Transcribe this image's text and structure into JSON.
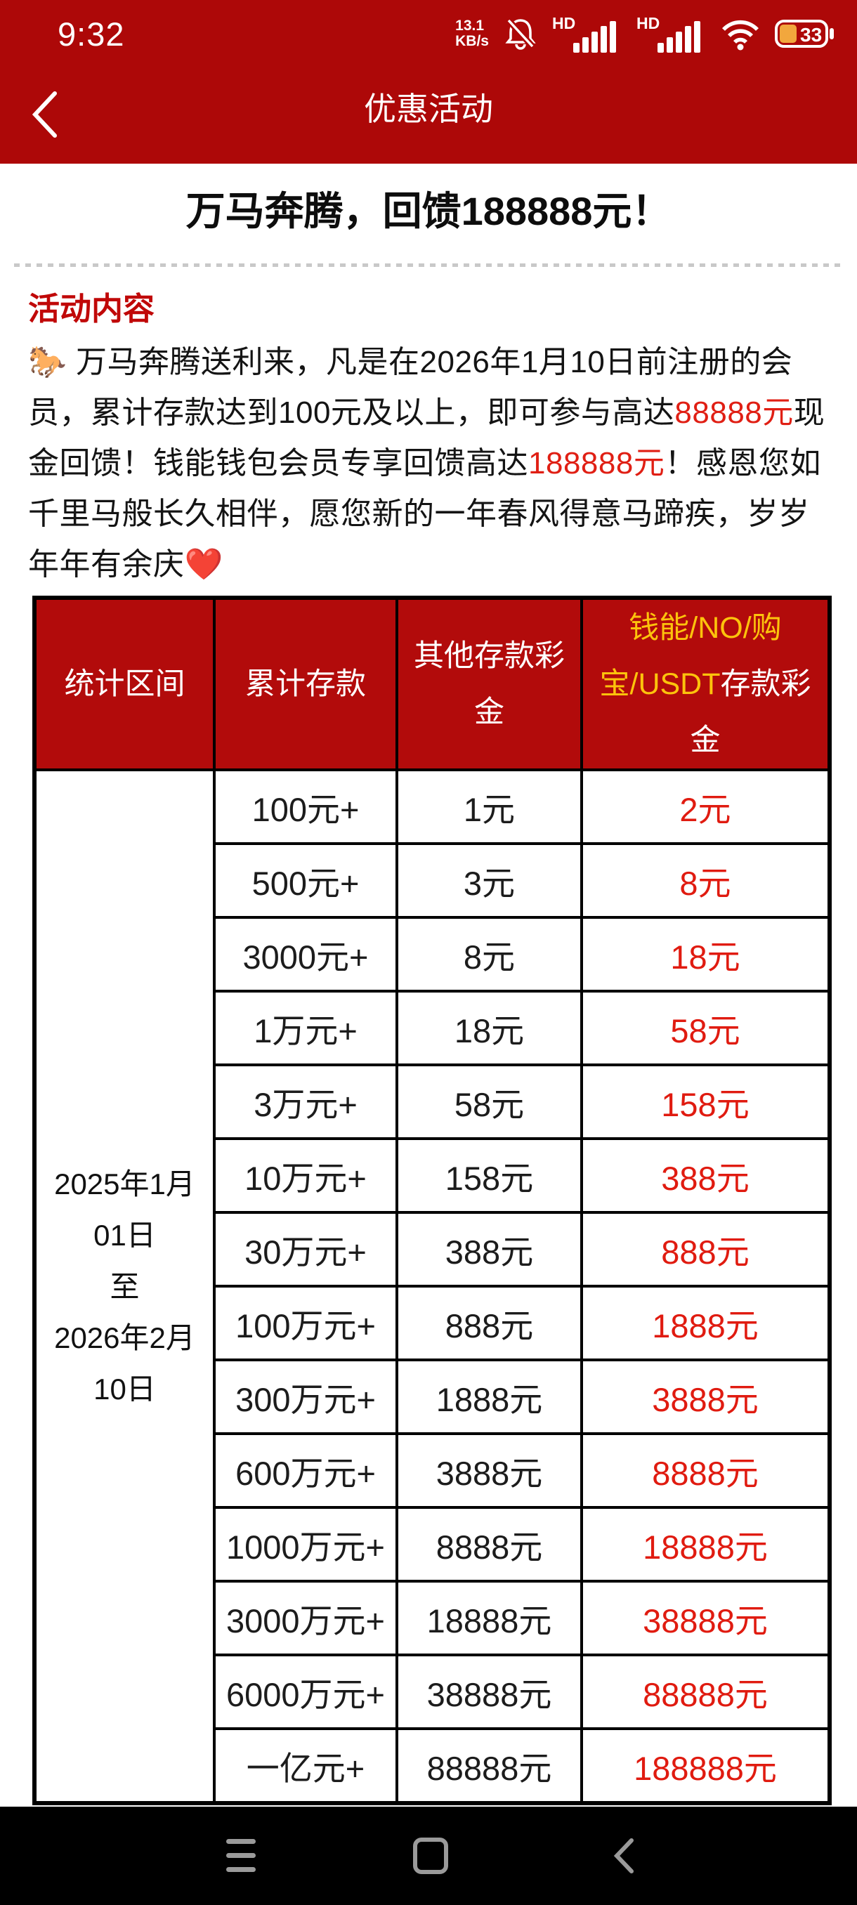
{
  "status_bar": {
    "time": "9:32",
    "net_speed_value": "13.1",
    "net_speed_unit": "KB/s",
    "sim1_label": "HD",
    "sim2_label": "HD",
    "battery_percent": "33"
  },
  "nav_bar": {
    "title": "优惠活动"
  },
  "page": {
    "title": "万马奔腾，回馈188888元！",
    "section_heading": "活动内容",
    "paragraph_segments": [
      {
        "text": "🐎 万马奔腾送利来，凡是在2026年1月10日前注册的会员，累计存款达到100元及以上，即可参与高达",
        "style": "black"
      },
      {
        "text": "88888元",
        "style": "red"
      },
      {
        "text": "现金回馈！钱能钱包会员专享回馈高达",
        "style": "black"
      },
      {
        "text": "188888元",
        "style": "red"
      },
      {
        "text": "！感恩您如千里马般长久相伴，愿您新的一年春风得意马蹄疾，岁岁年年有余庆",
        "style": "black"
      },
      {
        "text": "❤️",
        "style": "heart"
      }
    ]
  },
  "table": {
    "headers": {
      "period": "统计区间",
      "deposit": "累计存款",
      "other_bonus_lines": [
        "其他存款彩",
        "金"
      ],
      "wallet_bonus_lines": [
        {
          "gold": "钱能/NO/购",
          "white": ""
        },
        {
          "gold": "宝/USDT",
          "white": "存款彩"
        },
        {
          "gold": "",
          "white": "金"
        }
      ]
    },
    "period_lines": [
      "2025年1月",
      "01日",
      "至",
      "2026年2月",
      "10日"
    ],
    "rows": [
      {
        "deposit": "100元+",
        "other_bonus": "1元",
        "wallet_bonus": "2元"
      },
      {
        "deposit": "500元+",
        "other_bonus": "3元",
        "wallet_bonus": "8元"
      },
      {
        "deposit": "3000元+",
        "other_bonus": "8元",
        "wallet_bonus": "18元"
      },
      {
        "deposit": "1万元+",
        "other_bonus": "18元",
        "wallet_bonus": "58元"
      },
      {
        "deposit": "3万元+",
        "other_bonus": "58元",
        "wallet_bonus": "158元"
      },
      {
        "deposit": "10万元+",
        "other_bonus": "158元",
        "wallet_bonus": "388元"
      },
      {
        "deposit": "30万元+",
        "other_bonus": "388元",
        "wallet_bonus": "888元"
      },
      {
        "deposit": "100万元+",
        "other_bonus": "888元",
        "wallet_bonus": "1888元"
      },
      {
        "deposit": "300万元+",
        "other_bonus": "1888元",
        "wallet_bonus": "3888元"
      },
      {
        "deposit": "600万元+",
        "other_bonus": "3888元",
        "wallet_bonus": "8888元"
      },
      {
        "deposit": "1000万元+",
        "other_bonus": "8888元",
        "wallet_bonus": "18888元"
      },
      {
        "deposit": "3000万元+",
        "other_bonus": "18888元",
        "wallet_bonus": "38888元"
      },
      {
        "deposit": "6000万元+",
        "other_bonus": "38888元",
        "wallet_bonus": "88888元"
      },
      {
        "deposit": "一亿元+",
        "other_bonus": "88888元",
        "wallet_bonus": "188888元"
      }
    ]
  },
  "colors": {
    "top_bar_red": "#ad0808",
    "table_header_red": "#b20b0b",
    "header_gold": "#fcc30c",
    "bonus_red": "#e01b10",
    "heading_red": "#c00808",
    "battery_fill_orange": "#f2a73d"
  }
}
